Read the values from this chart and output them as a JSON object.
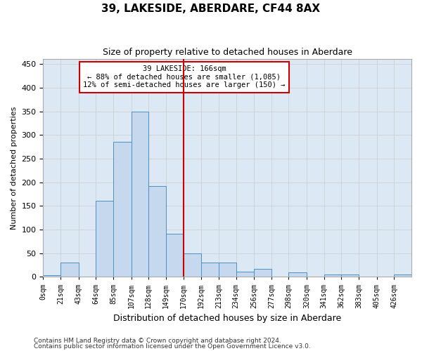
{
  "title": "39, LAKESIDE, ABERDARE, CF44 8AX",
  "subtitle": "Size of property relative to detached houses in Aberdare",
  "xlabel": "Distribution of detached houses by size in Aberdare",
  "ylabel": "Number of detached properties",
  "footnote1": "Contains HM Land Registry data © Crown copyright and database right 2024.",
  "footnote2": "Contains public sector information licensed under the Open Government Licence v3.0.",
  "bar_labels": [
    "0sqm",
    "21sqm",
    "43sqm",
    "64sqm",
    "85sqm",
    "107sqm",
    "128sqm",
    "149sqm",
    "170sqm",
    "192sqm",
    "213sqm",
    "234sqm",
    "256sqm",
    "277sqm",
    "298sqm",
    "320sqm",
    "341sqm",
    "362sqm",
    "383sqm",
    "405sqm",
    "426sqm"
  ],
  "bar_heights": [
    4,
    30,
    0,
    161,
    285,
    350,
    192,
    91,
    50,
    30,
    30,
    11,
    17,
    0,
    10,
    0,
    5,
    5,
    1,
    0,
    5
  ],
  "bar_color": "#c5d8ed",
  "bar_edge_color": "#4a90c4",
  "vline_x_index": 8,
  "annotation_text_line1": "39 LAKESIDE: 166sqm",
  "annotation_text_line2": "← 88% of detached houses are smaller (1,085)",
  "annotation_text_line3": "12% of semi-detached houses are larger (150) →",
  "annotation_box_color": "#cc0000",
  "vline_color": "#cc0000",
  "ylim": [
    0,
    460
  ],
  "yticks": [
    0,
    50,
    100,
    150,
    200,
    250,
    300,
    350,
    400,
    450
  ],
  "grid_color": "#cccccc",
  "background_color": "#dce9f5"
}
